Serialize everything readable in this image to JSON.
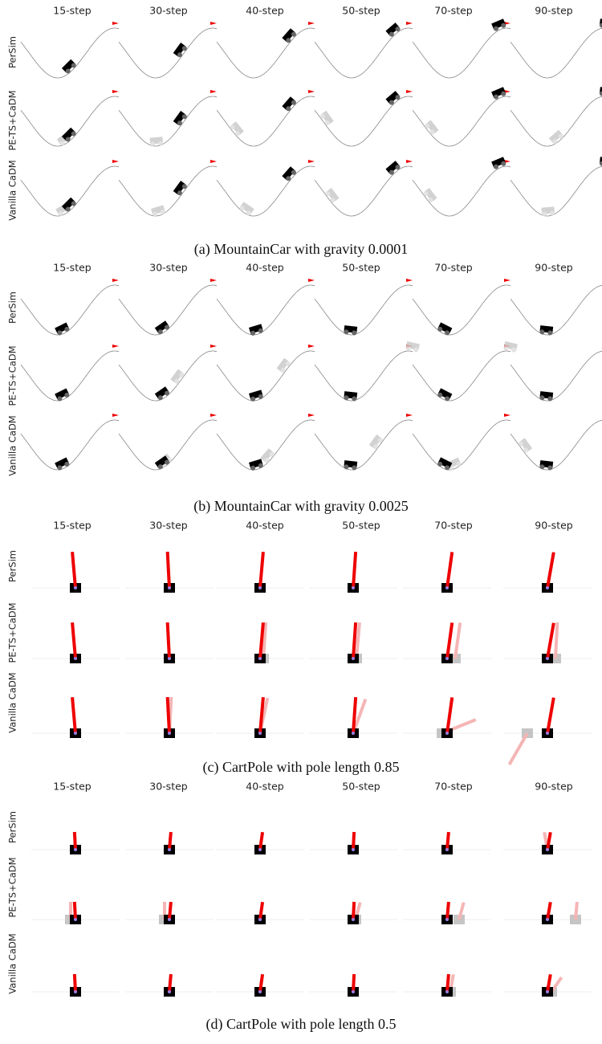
{
  "panels": [
    {
      "caption": "(a) MountainCar with gravity 0.0001",
      "columns": [
        "15-step",
        "30-step",
        "40-step",
        "50-step",
        "70-step",
        "90-step"
      ],
      "rows": [
        "PerSim",
        "PE-TS+CaDM",
        "Vanilla CaDM"
      ]
    },
    {
      "caption": "(b) MountainCar with gravity 0.0025",
      "columns": [
        "15-step",
        "30-step",
        "40-step",
        "50-step",
        "70-step",
        "90-step"
      ],
      "rows": [
        "PerSim",
        "PE-TS+CaDM",
        "Vanilla CaDM"
      ]
    },
    {
      "caption": "(c) CartPole with pole length 0.85",
      "columns": [
        "15-step",
        "30-step",
        "40-step",
        "50-step",
        "70-step",
        "90-step"
      ],
      "rows": [
        "PerSim",
        "PE-TS+CaDM",
        "Vanilla CaDM"
      ]
    },
    {
      "caption": "(d) CartPole with pole length 0.5",
      "columns": [
        "15-step",
        "30-step",
        "40-step",
        "50-step",
        "70-step",
        "90-step"
      ],
      "rows": [
        "PerSim",
        "PE-TS+CaDM",
        "Vanilla CaDM"
      ]
    }
  ]
}
